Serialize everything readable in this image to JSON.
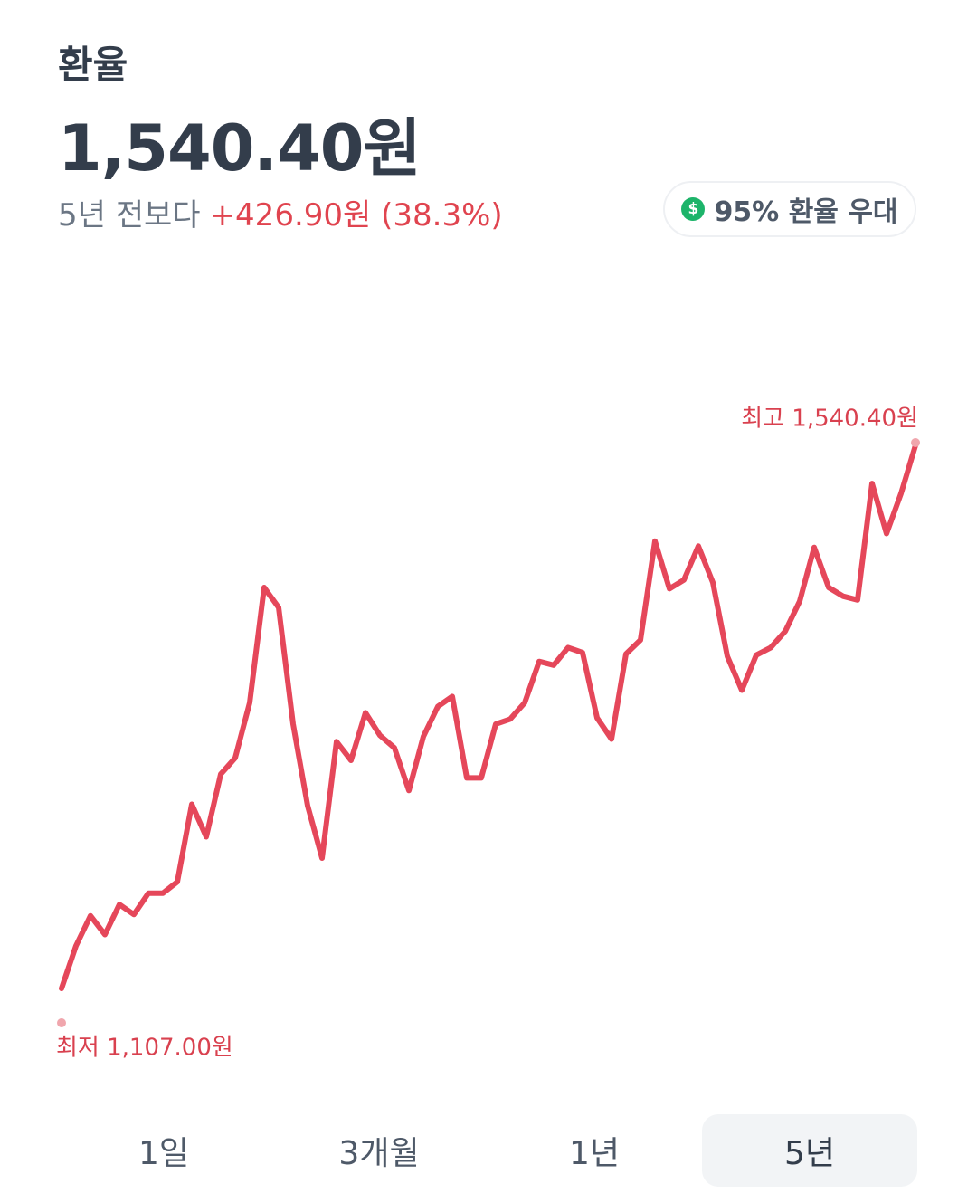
{
  "header": {
    "title": "환율",
    "price": "1,540.40원",
    "change_period": "5년 전보다",
    "change": "+426.90원 (38.3%)"
  },
  "badge": {
    "icon": "$",
    "label": "95% 환율 우대"
  },
  "chart_data": {
    "type": "line",
    "color": "#e5475a",
    "values": [
      1107,
      1141,
      1165,
      1150,
      1174,
      1166,
      1183,
      1183,
      1192,
      1254,
      1228,
      1278,
      1291,
      1335,
      1427,
      1411,
      1318,
      1253,
      1211,
      1304,
      1289,
      1327,
      1309,
      1299,
      1265,
      1308,
      1332,
      1340,
      1275,
      1275,
      1318,
      1322,
      1335,
      1368,
      1365,
      1379,
      1375,
      1323,
      1306,
      1374,
      1385,
      1464,
      1426,
      1433,
      1460,
      1431,
      1372,
      1345,
      1373,
      1379,
      1392,
      1416,
      1459,
      1427,
      1420,
      1417,
      1510,
      1470,
      1502,
      1540.4
    ],
    "annotations": {
      "max": "최고 1,540.40원",
      "min": "최저 1,107.00원"
    }
  },
  "tabs": {
    "items": [
      "1일",
      "3개월",
      "1년",
      "5년"
    ],
    "selected": 3
  }
}
